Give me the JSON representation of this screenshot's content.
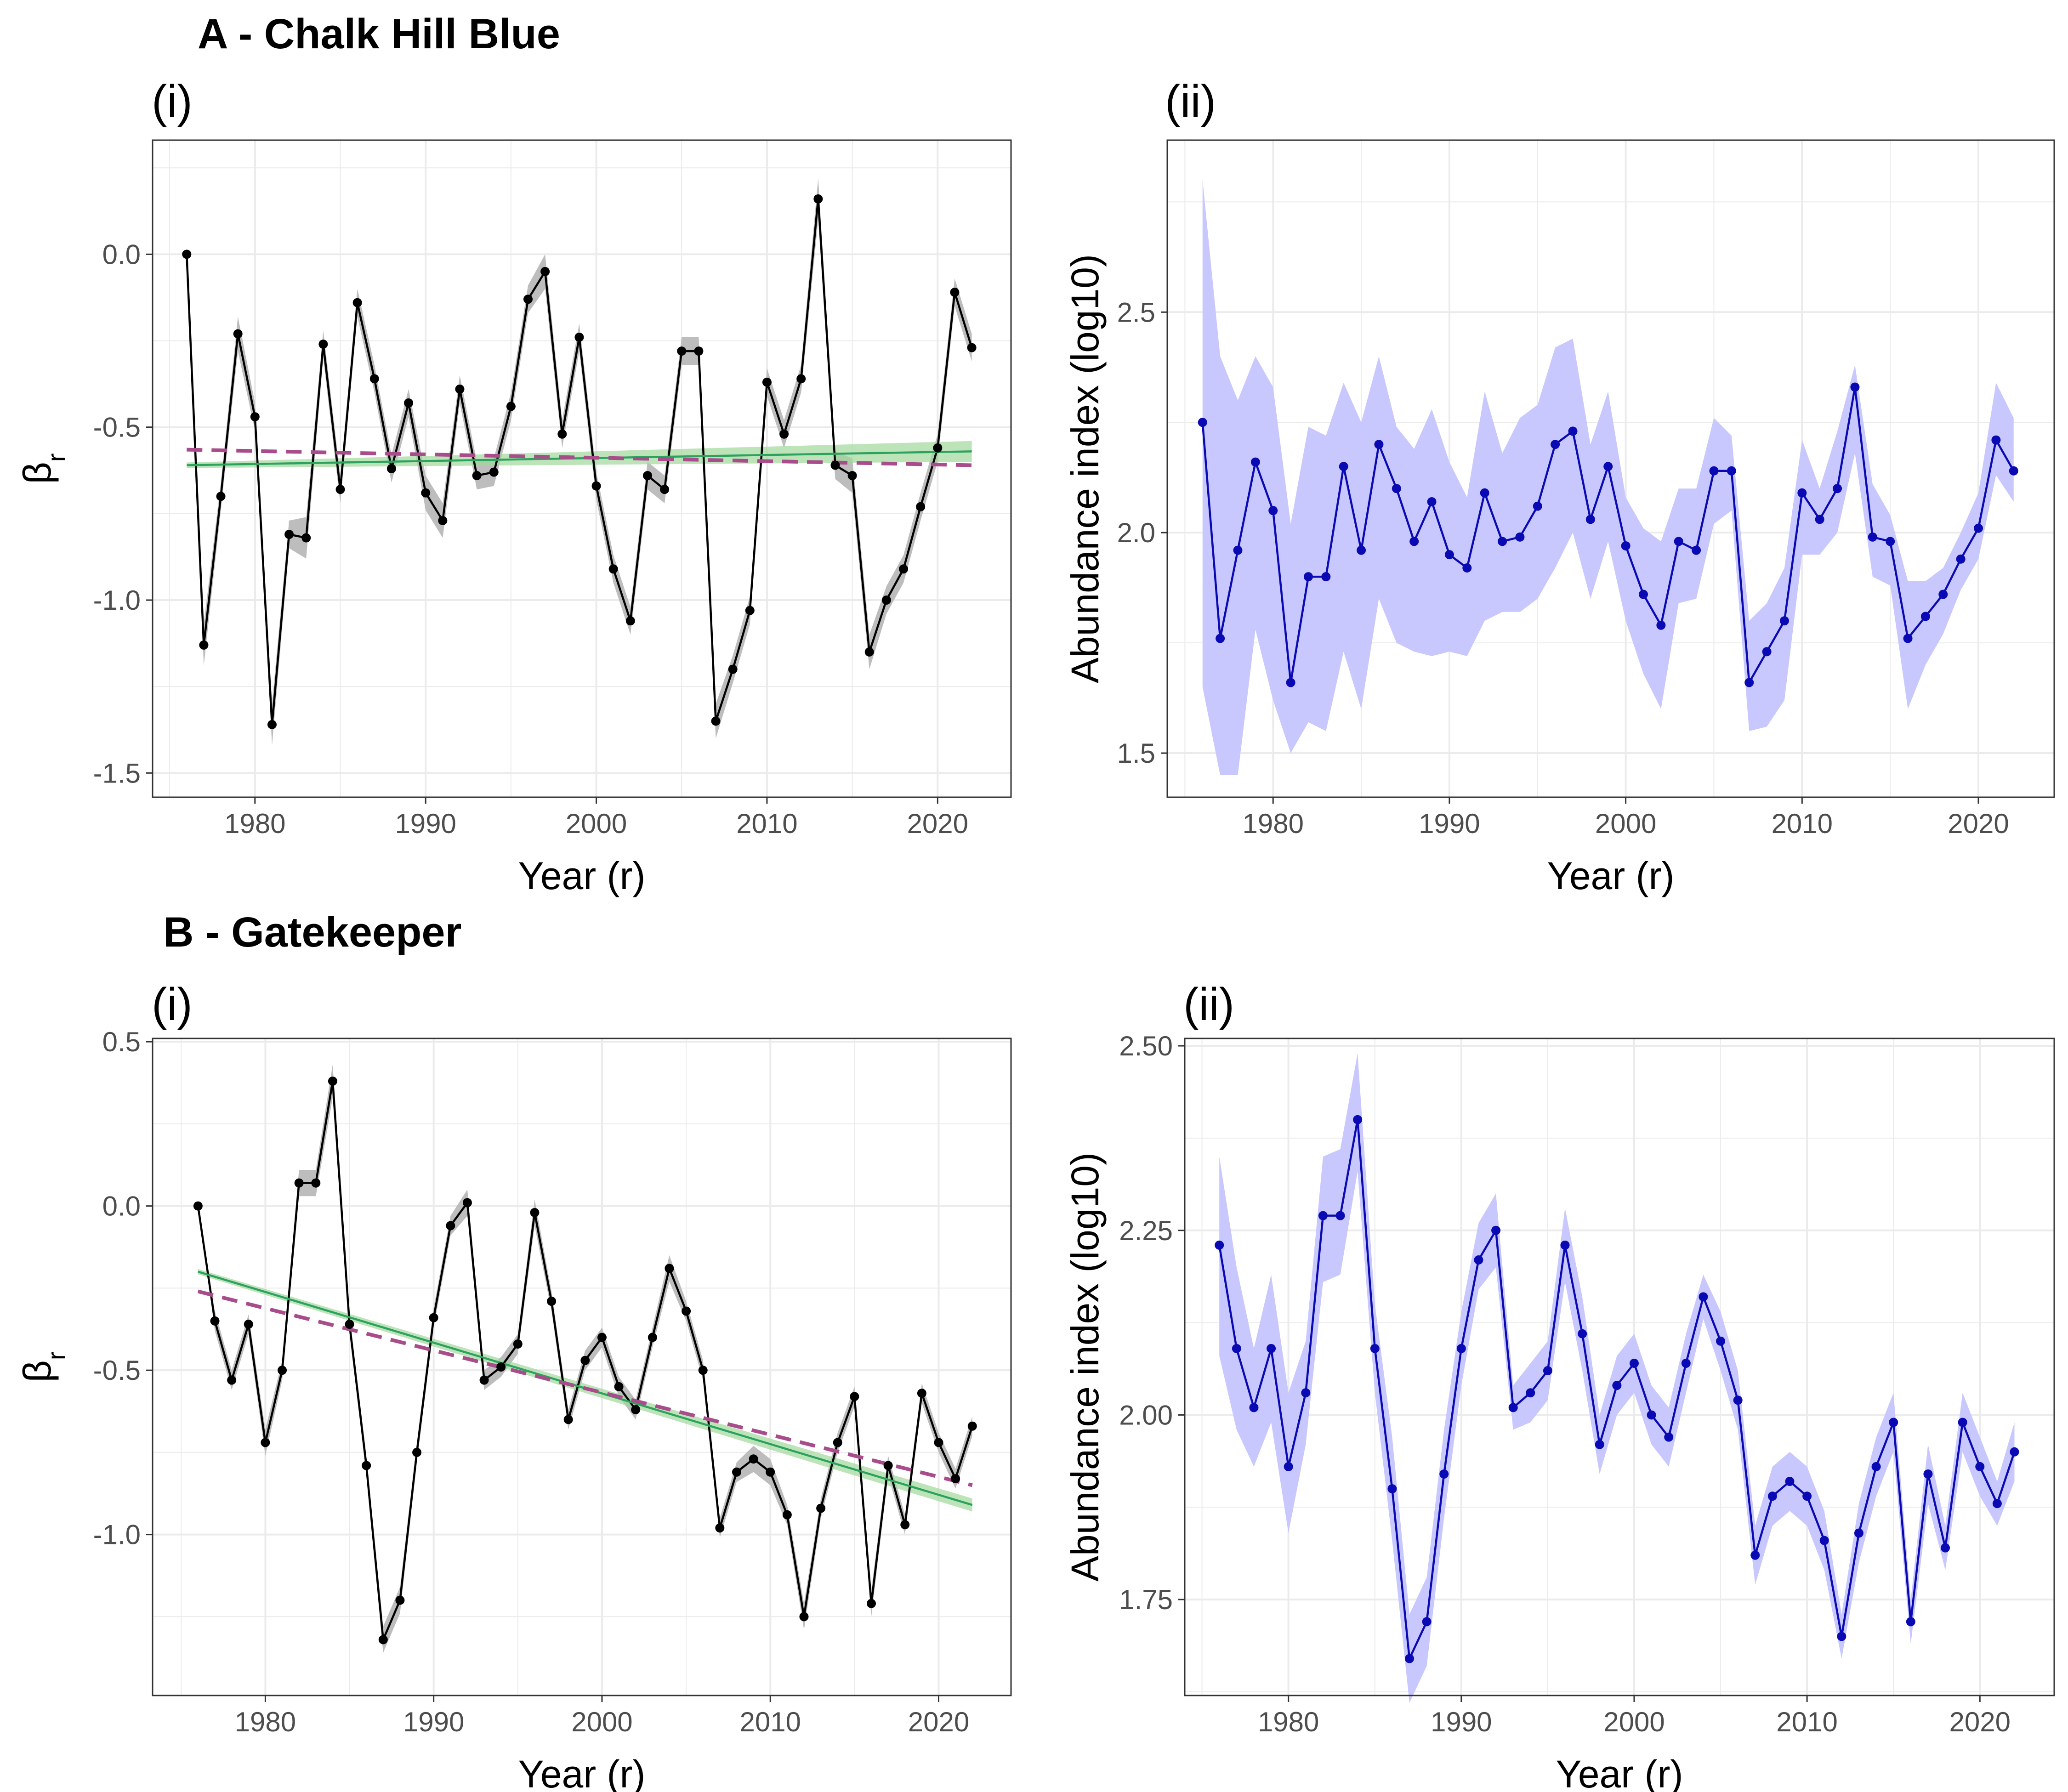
{
  "panels": {
    "A": {
      "title": "A - Chalk Hill Blue"
    },
    "B": {
      "title": "B - Gatekeeper"
    }
  },
  "colors": {
    "beta_line": "#000000",
    "beta_ribbon": "#bdbdbd",
    "trend_solid": "#2ca25f",
    "trend_solid_ribbon": "#a1d99b",
    "trend_dashed": "#a84c8c",
    "abundance_line": "#0a0ab4",
    "abundance_ribbon": "#c8c8ff",
    "grid": "#ebebeb",
    "panel_border": "#333333"
  },
  "chart_data": [
    {
      "id": "A-i",
      "type": "line",
      "panel_label": "(i)",
      "xlabel": "Year (r)",
      "ylabel_main": "β",
      "ylabel_sub": "r",
      "xlim": [
        1974,
        2024.3
      ],
      "ylim": [
        -1.57,
        0.33
      ],
      "xticks": [
        1980,
        1990,
        2000,
        2010,
        2020
      ],
      "yticks": [
        0.0,
        -0.5,
        -1.0,
        -1.5
      ],
      "ytick_labels": [
        "0.0",
        "-0.5",
        "-1.0",
        "-1.5"
      ],
      "x": [
        1976,
        1977,
        1978,
        1979,
        1980,
        1981,
        1982,
        1983,
        1984,
        1985,
        1986,
        1987,
        1988,
        1989,
        1990,
        1991,
        1992,
        1993,
        1994,
        1995,
        1996,
        1997,
        1998,
        1999,
        2000,
        2001,
        2002,
        2003,
        2004,
        2005,
        2006,
        2007,
        2008,
        2009,
        2010,
        2011,
        2012,
        2013,
        2014,
        2015,
        2016,
        2017,
        2018,
        2019,
        2020,
        2021,
        2022
      ],
      "series": [
        {
          "values": [
            0.0,
            -1.13,
            -0.7,
            -0.23,
            -0.47,
            -1.36,
            -0.81,
            -0.82,
            -0.26,
            -0.68,
            -0.14,
            -0.36,
            -0.62,
            -0.43,
            -0.69,
            -0.77,
            -0.39,
            -0.64,
            -0.63,
            -0.44,
            -0.13,
            -0.05,
            -0.52,
            -0.24,
            -0.67,
            -0.91,
            -1.06,
            -0.64,
            -0.68,
            -0.28,
            -0.28,
            -1.35,
            -1.2,
            -1.03,
            -0.37,
            -0.52,
            -0.36,
            0.16,
            -0.61,
            -0.64,
            -1.15,
            -1.0,
            -0.91,
            -0.73,
            -0.56,
            -0.11,
            -0.27
          ],
          "ribbon_halfwidth": [
            0,
            0.06,
            0.04,
            0.05,
            0.04,
            0.06,
            0.04,
            0.06,
            0.04,
            0.04,
            0.04,
            0.04,
            0.04,
            0.04,
            0.05,
            0.05,
            0.04,
            0.04,
            0.04,
            0.04,
            0.04,
            0.05,
            0.04,
            0.04,
            0.04,
            0.04,
            0.04,
            0.04,
            0.04,
            0.04,
            0.04,
            0.05,
            0.04,
            0.04,
            0.04,
            0.04,
            0.04,
            0.06,
            0.04,
            0.05,
            0.05,
            0.04,
            0.04,
            0.04,
            0.04,
            0.04,
            0.04
          ]
        }
      ],
      "trend_solid": {
        "x": [
          1976,
          2022
        ],
        "y": [
          -0.61,
          -0.57
        ],
        "ribbon_halfwidth": [
          0.008,
          0.03
        ]
      },
      "trend_dashed": {
        "x": [
          1976,
          2022
        ],
        "y": [
          -0.565,
          -0.61
        ]
      }
    },
    {
      "id": "A-ii",
      "type": "line",
      "panel_label": "(ii)",
      "xlabel": "Year (r)",
      "ylabel": "Abundance index (log10)",
      "xlim": [
        1974,
        2024.3
      ],
      "ylim": [
        1.4,
        2.89
      ],
      "xticks": [
        1980,
        1990,
        2000,
        2010,
        2020
      ],
      "yticks": [
        1.5,
        2.0,
        2.5
      ],
      "ytick_labels": [
        "1.5",
        "2.0",
        "2.5"
      ],
      "x": [
        1976,
        1977,
        1978,
        1979,
        1980,
        1981,
        1982,
        1983,
        1984,
        1985,
        1986,
        1987,
        1988,
        1989,
        1990,
        1991,
        1992,
        1993,
        1994,
        1995,
        1996,
        1997,
        1998,
        1999,
        2000,
        2001,
        2002,
        2003,
        2004,
        2005,
        2006,
        2007,
        2008,
        2009,
        2010,
        2011,
        2012,
        2013,
        2014,
        2015,
        2016,
        2017,
        2018,
        2019,
        2020,
        2021,
        2022
      ],
      "series": [
        {
          "values": [
            2.25,
            1.76,
            1.96,
            2.16,
            2.05,
            1.66,
            1.9,
            1.9,
            2.15,
            1.96,
            2.2,
            2.1,
            1.98,
            2.07,
            1.95,
            1.92,
            2.09,
            1.98,
            1.99,
            2.06,
            2.2,
            2.23,
            2.03,
            2.15,
            1.97,
            1.86,
            1.79,
            1.98,
            1.96,
            2.14,
            2.14,
            1.66,
            1.73,
            1.8,
            2.09,
            2.03,
            2.1,
            2.33,
            1.99,
            1.98,
            1.76,
            1.81,
            1.86,
            1.94,
            2.01,
            2.21,
            2.14
          ],
          "ribbon_low": [
            1.65,
            1.45,
            1.45,
            1.78,
            1.62,
            1.5,
            1.57,
            1.55,
            1.73,
            1.6,
            1.85,
            1.75,
            1.73,
            1.72,
            1.73,
            1.72,
            1.8,
            1.82,
            1.82,
            1.85,
            1.92,
            2.0,
            1.85,
            1.98,
            1.8,
            1.68,
            1.6,
            1.84,
            1.85,
            2.02,
            2.05,
            1.55,
            1.56,
            1.62,
            1.95,
            1.95,
            2.0,
            2.18,
            1.9,
            1.88,
            1.6,
            1.7,
            1.77,
            1.87,
            1.94,
            2.13,
            2.07
          ],
          "ribbon_high": [
            2.8,
            2.4,
            2.3,
            2.4,
            2.33,
            2.02,
            2.24,
            2.22,
            2.34,
            2.25,
            2.4,
            2.24,
            2.19,
            2.28,
            2.16,
            2.08,
            2.32,
            2.18,
            2.26,
            2.29,
            2.42,
            2.44,
            2.2,
            2.32,
            2.08,
            2.01,
            1.98,
            2.1,
            2.1,
            2.26,
            2.22,
            1.8,
            1.84,
            1.92,
            2.21,
            2.1,
            2.23,
            2.38,
            2.11,
            2.04,
            1.89,
            1.89,
            1.92,
            2.0,
            2.09,
            2.34,
            2.26
          ]
        }
      ]
    },
    {
      "id": "B-i",
      "type": "line",
      "panel_label": "(i)",
      "xlabel": "Year (r)",
      "ylabel_main": "β",
      "ylabel_sub": "r",
      "xlim": [
        1973.3,
        2024.3
      ],
      "ylim": [
        -1.49,
        0.51
      ],
      "xticks": [
        1980,
        1990,
        2000,
        2010,
        2020
      ],
      "yticks": [
        0.5,
        0.0,
        -0.5,
        -1.0
      ],
      "ytick_labels": [
        "0.5",
        "0.0",
        "-0.5",
        "-1.0"
      ],
      "x": [
        1976,
        1977,
        1978,
        1979,
        1980,
        1981,
        1982,
        1983,
        1984,
        1985,
        1986,
        1987,
        1988,
        1989,
        1990,
        1991,
        1992,
        1993,
        1994,
        1995,
        1996,
        1997,
        1998,
        1999,
        2000,
        2001,
        2002,
        2003,
        2004,
        2005,
        2006,
        2007,
        2008,
        2009,
        2010,
        2011,
        2012,
        2013,
        2014,
        2015,
        2016,
        2017,
        2018,
        2019,
        2020,
        2021,
        2022
      ],
      "series": [
        {
          "values": [
            0.0,
            -0.35,
            -0.53,
            -0.36,
            -0.72,
            -0.5,
            0.07,
            0.07,
            0.38,
            -0.36,
            -0.79,
            -1.32,
            -1.2,
            -0.75,
            -0.34,
            -0.06,
            0.01,
            -0.53,
            -0.49,
            -0.42,
            -0.02,
            -0.29,
            -0.65,
            -0.47,
            -0.4,
            -0.55,
            -0.62,
            -0.4,
            -0.19,
            -0.32,
            -0.5,
            -0.98,
            -0.81,
            -0.77,
            -0.81,
            -0.94,
            -1.25,
            -0.92,
            -0.72,
            -0.58,
            -1.21,
            -0.79,
            -0.97,
            -0.57,
            -0.72,
            -0.83,
            -0.67
          ],
          "ribbon_halfwidth": [
            0,
            0.03,
            0.03,
            0.03,
            0.04,
            0.03,
            0.04,
            0.04,
            0.05,
            0.03,
            0.03,
            0.04,
            0.04,
            0.03,
            0.03,
            0.03,
            0.04,
            0.03,
            0.03,
            0.03,
            0.04,
            0.03,
            0.03,
            0.03,
            0.03,
            0.03,
            0.03,
            0.03,
            0.04,
            0.03,
            0.03,
            0.03,
            0.03,
            0.04,
            0.04,
            0.03,
            0.04,
            0.03,
            0.03,
            0.03,
            0.04,
            0.03,
            0.03,
            0.03,
            0.03,
            0.03,
            0.03
          ]
        }
      ],
      "trend_solid": {
        "x": [
          1976,
          2022
        ],
        "y": [
          -0.2,
          -0.91
        ],
        "ribbon_halfwidth": [
          0.008,
          0.02
        ]
      },
      "trend_dashed": {
        "x": [
          1976,
          2022
        ],
        "y": [
          -0.26,
          -0.85
        ]
      }
    },
    {
      "id": "B-ii",
      "type": "line",
      "panel_label": "(ii)",
      "xlabel": "Year (r)",
      "ylabel": "Abundance index (log10)",
      "xlim": [
        1974,
        2024.3
      ],
      "ylim": [
        1.62,
        2.51
      ],
      "xticks": [
        1980,
        1990,
        2000,
        2010,
        2020
      ],
      "yticks": [
        2.5,
        2.25,
        2.0,
        1.75
      ],
      "ytick_labels": [
        "2.50",
        "2.25",
        "2.00",
        "1.75"
      ],
      "x": [
        1976,
        1977,
        1978,
        1979,
        1980,
        1981,
        1982,
        1983,
        1984,
        1985,
        1986,
        1987,
        1988,
        1989,
        1990,
        1991,
        1992,
        1993,
        1994,
        1995,
        1996,
        1997,
        1998,
        1999,
        2000,
        2001,
        2002,
        2003,
        2004,
        2005,
        2006,
        2007,
        2008,
        2009,
        2010,
        2011,
        2012,
        2013,
        2014,
        2015,
        2016,
        2017,
        2018,
        2019,
        2020,
        2021,
        2022
      ],
      "series": [
        {
          "values": [
            2.23,
            2.09,
            2.01,
            2.09,
            1.93,
            2.03,
            2.27,
            2.27,
            2.4,
            2.09,
            1.9,
            1.67,
            1.72,
            1.92,
            2.09,
            2.21,
            2.25,
            2.01,
            2.03,
            2.06,
            2.23,
            2.11,
            1.96,
            2.04,
            2.07,
            2.0,
            1.97,
            2.07,
            2.16,
            2.1,
            2.02,
            1.81,
            1.89,
            1.91,
            1.89,
            1.83,
            1.7,
            1.84,
            1.93,
            1.99,
            1.72,
            1.92,
            1.82,
            1.99,
            1.93,
            1.88,
            1.95
          ],
          "ribbon_low": [
            2.08,
            1.98,
            1.93,
            1.99,
            1.84,
            1.96,
            2.18,
            2.19,
            2.33,
            2.03,
            1.83,
            1.61,
            1.66,
            1.86,
            2.04,
            2.17,
            2.2,
            1.98,
            1.99,
            2.02,
            2.18,
            2.06,
            1.92,
            2.0,
            2.03,
            1.96,
            1.93,
            2.03,
            2.13,
            2.06,
            1.98,
            1.77,
            1.85,
            1.87,
            1.85,
            1.79,
            1.67,
            1.8,
            1.89,
            1.95,
            1.69,
            1.88,
            1.79,
            1.95,
            1.89,
            1.85,
            1.91
          ],
          "ribbon_high": [
            2.35,
            2.2,
            2.09,
            2.19,
            2.03,
            2.1,
            2.35,
            2.36,
            2.49,
            2.15,
            1.97,
            1.73,
            1.78,
            1.98,
            2.14,
            2.26,
            2.3,
            2.04,
            2.07,
            2.1,
            2.28,
            2.16,
            2.0,
            2.08,
            2.11,
            2.04,
            2.01,
            2.11,
            2.19,
            2.14,
            2.06,
            1.85,
            1.93,
            1.95,
            1.93,
            1.87,
            1.73,
            1.88,
            1.97,
            2.03,
            1.75,
            1.96,
            1.85,
            2.03,
            1.97,
            1.91,
            1.99
          ]
        }
      ]
    }
  ]
}
